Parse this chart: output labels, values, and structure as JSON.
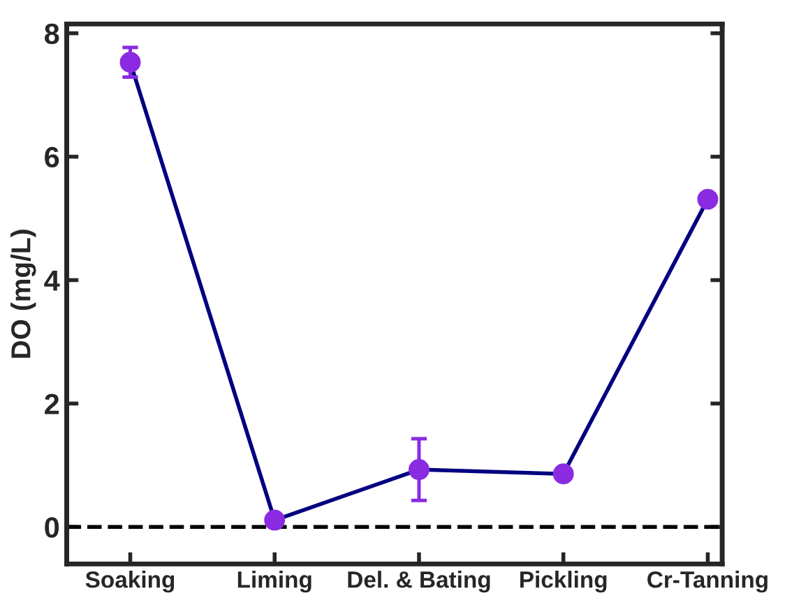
{
  "chart_data": {
    "type": "line",
    "ylabel": "DO (mg/L)",
    "categories": [
      "Soaking",
      "Liming",
      "Del. & Bating",
      "Pickling",
      "Cr-Tanning"
    ],
    "series": [
      {
        "color": "#000080",
        "colors": [
          "#8a2be2",
          "#8a2be2",
          "#8a2be2",
          "#8a2be2",
          "#8a2be2"
        ],
        "values": [
          7.53,
          0.11,
          0.93,
          0.86,
          5.31
        ],
        "errors": [
          0.24,
          null,
          0.5,
          null,
          null
        ]
      }
    ],
    "ylim": [
      -0.6,
      8.15
    ],
    "yticks": [
      0,
      2,
      4,
      6,
      8
    ],
    "ref_lines": [
      {
        "axis": "y",
        "value": 0,
        "color": "#000000",
        "line_style": "dashed"
      }
    ],
    "marker": "circle",
    "line_style": "solid",
    "grid": false,
    "legend": false
  }
}
